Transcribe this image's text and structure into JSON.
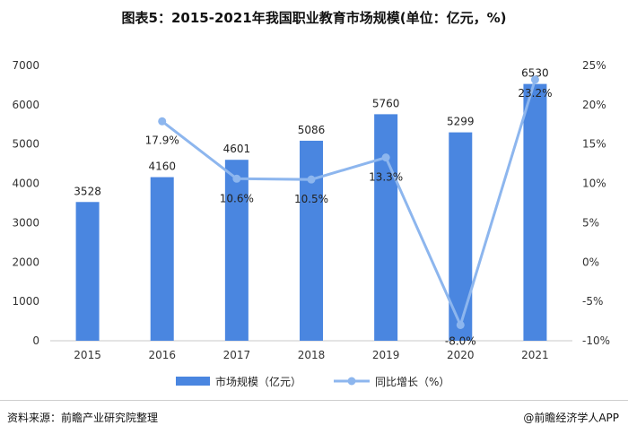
{
  "title": "图表5：2015-2021年我国职业教育市场规模(单位：亿元，%)",
  "source": "资料来源：前瞻产业研究院整理",
  "brand": "@前瞻经济学人APP",
  "colors": {
    "bar": "#4a86e0",
    "line": "#8db6ee"
  },
  "chart_data": {
    "type": "bar",
    "categories": [
      "2015",
      "2016",
      "2017",
      "2018",
      "2019",
      "2020",
      "2021"
    ],
    "series": [
      {
        "name": "市场规模（亿元）",
        "type": "bar",
        "axis": "left",
        "values": [
          3528,
          4160,
          4601,
          5086,
          5760,
          5299,
          6530
        ],
        "labels": [
          "3528",
          "4160",
          "4601",
          "5086",
          "5760",
          "5299",
          "6530"
        ]
      },
      {
        "name": "同比增长（%）",
        "type": "line",
        "axis": "right",
        "values": [
          null,
          17.9,
          10.6,
          10.5,
          13.3,
          -8.0,
          23.2
        ],
        "labels": [
          "",
          "17.9%",
          "10.6%",
          "10.5%",
          "13.3%",
          "-8.0%",
          "23.2%"
        ]
      }
    ],
    "y_left": {
      "min": 0,
      "max": 7000,
      "step": 1000,
      "ticks": [
        "0",
        "1000",
        "2000",
        "3000",
        "4000",
        "5000",
        "6000",
        "7000"
      ]
    },
    "y_right": {
      "min": -10,
      "max": 25,
      "step": 5,
      "ticks": [
        "-10%",
        "-5%",
        "0%",
        "5%",
        "10%",
        "15%",
        "20%",
        "25%"
      ]
    },
    "legend_position": "bottom",
    "grid": false
  }
}
